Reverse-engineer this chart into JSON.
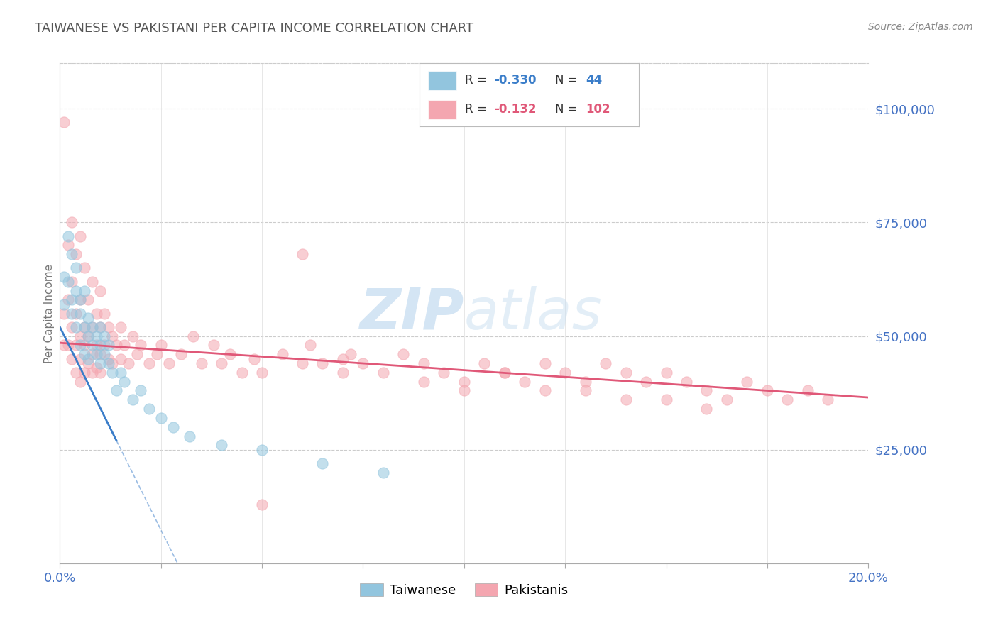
{
  "title": "TAIWANESE VS PAKISTANI PER CAPITA INCOME CORRELATION CHART",
  "source": "Source: ZipAtlas.com",
  "ylabel": "Per Capita Income",
  "watermark_zip": "ZIP",
  "watermark_atlas": "atlas",
  "xlim": [
    0.0,
    0.2
  ],
  "ylim": [
    0,
    110000
  ],
  "color_taiwanese": "#92c5de",
  "color_pakistani": "#f4a6b0",
  "color_trend_taiwanese": "#3a7dc9",
  "color_trend_pakistani": "#e05878",
  "color_axis_labels": "#4472C4",
  "color_title": "#555555",
  "color_source": "#888888",
  "background_color": "#ffffff",
  "tw_trend_x0": 0.0,
  "tw_trend_y0": 52000,
  "tw_trend_x1": 0.014,
  "tw_trend_y1": 27000,
  "pk_trend_x0": 0.0,
  "pk_trend_y0": 48500,
  "pk_trend_x1": 0.2,
  "pk_trend_y1": 36500,
  "taiwanese_x": [
    0.001,
    0.001,
    0.002,
    0.002,
    0.003,
    0.003,
    0.003,
    0.004,
    0.004,
    0.004,
    0.005,
    0.005,
    0.005,
    0.006,
    0.006,
    0.006,
    0.007,
    0.007,
    0.007,
    0.008,
    0.008,
    0.009,
    0.009,
    0.01,
    0.01,
    0.01,
    0.011,
    0.011,
    0.012,
    0.012,
    0.013,
    0.014,
    0.015,
    0.016,
    0.018,
    0.02,
    0.022,
    0.025,
    0.028,
    0.032,
    0.04,
    0.05,
    0.065,
    0.08
  ],
  "taiwanese_y": [
    63000,
    57000,
    72000,
    62000,
    68000,
    55000,
    58000,
    60000,
    52000,
    65000,
    55000,
    48000,
    58000,
    52000,
    46000,
    60000,
    50000,
    45000,
    54000,
    48000,
    52000,
    46000,
    50000,
    48000,
    44000,
    52000,
    46000,
    50000,
    44000,
    48000,
    42000,
    38000,
    42000,
    40000,
    36000,
    38000,
    34000,
    32000,
    30000,
    28000,
    26000,
    25000,
    22000,
    20000
  ],
  "pakistani_x": [
    0.001,
    0.001,
    0.001,
    0.002,
    0.002,
    0.002,
    0.003,
    0.003,
    0.003,
    0.003,
    0.004,
    0.004,
    0.004,
    0.004,
    0.005,
    0.005,
    0.005,
    0.005,
    0.005,
    0.006,
    0.006,
    0.006,
    0.006,
    0.007,
    0.007,
    0.007,
    0.008,
    0.008,
    0.008,
    0.008,
    0.009,
    0.009,
    0.009,
    0.01,
    0.01,
    0.01,
    0.01,
    0.011,
    0.011,
    0.012,
    0.012,
    0.013,
    0.013,
    0.014,
    0.015,
    0.015,
    0.016,
    0.017,
    0.018,
    0.019,
    0.02,
    0.022,
    0.024,
    0.025,
    0.027,
    0.03,
    0.033,
    0.035,
    0.038,
    0.04,
    0.042,
    0.045,
    0.048,
    0.05,
    0.055,
    0.06,
    0.062,
    0.065,
    0.07,
    0.072,
    0.075,
    0.08,
    0.085,
    0.09,
    0.095,
    0.1,
    0.105,
    0.11,
    0.115,
    0.12,
    0.125,
    0.13,
    0.135,
    0.14,
    0.145,
    0.15,
    0.155,
    0.16,
    0.165,
    0.17,
    0.175,
    0.18,
    0.185,
    0.05,
    0.06,
    0.07,
    0.09,
    0.1,
    0.11,
    0.12,
    0.13,
    0.14,
    0.15,
    0.16,
    0.19
  ],
  "pakistani_y": [
    97000,
    55000,
    48000,
    70000,
    58000,
    48000,
    75000,
    62000,
    52000,
    45000,
    68000,
    55000,
    48000,
    42000,
    72000,
    58000,
    50000,
    45000,
    40000,
    65000,
    52000,
    48000,
    42000,
    58000,
    50000,
    44000,
    62000,
    52000,
    46000,
    42000,
    55000,
    48000,
    43000,
    60000,
    52000,
    46000,
    42000,
    55000,
    48000,
    52000,
    45000,
    50000,
    44000,
    48000,
    52000,
    45000,
    48000,
    44000,
    50000,
    46000,
    48000,
    44000,
    46000,
    48000,
    44000,
    46000,
    50000,
    44000,
    48000,
    44000,
    46000,
    42000,
    45000,
    42000,
    46000,
    44000,
    48000,
    44000,
    42000,
    46000,
    44000,
    42000,
    46000,
    44000,
    42000,
    40000,
    44000,
    42000,
    40000,
    44000,
    42000,
    40000,
    44000,
    42000,
    40000,
    42000,
    40000,
    38000,
    36000,
    40000,
    38000,
    36000,
    38000,
    13000,
    68000,
    45000,
    40000,
    38000,
    42000,
    38000,
    38000,
    36000,
    36000,
    34000,
    36000
  ]
}
